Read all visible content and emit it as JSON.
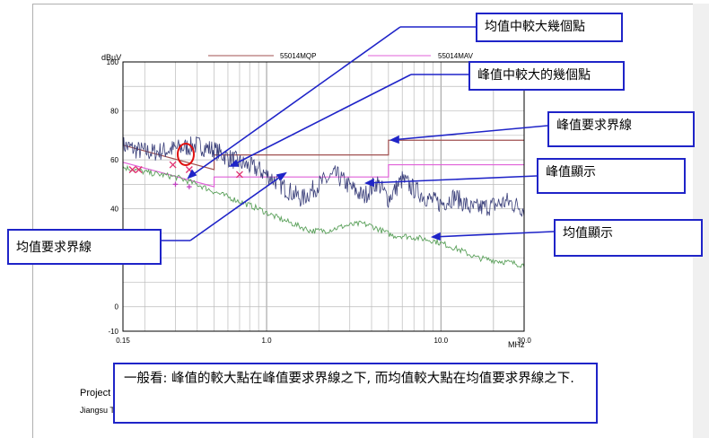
{
  "chart_data": {
    "type": "line",
    "title": "",
    "ylabel": "dBµV",
    "xlabel": "MHz",
    "x_scale": "log",
    "xlim": [
      0.15,
      30.0
    ],
    "ylim": [
      -10,
      100
    ],
    "x_ticks": [
      {
        "value": 0.15,
        "label": "0.15"
      },
      {
        "value": 1.0,
        "label": "1.0"
      },
      {
        "value": 10.0,
        "label": "10.0"
      },
      {
        "value": 30.0,
        "label": "30.0"
      }
    ],
    "y_ticks": [
      {
        "value": 100,
        "label": "100"
      },
      {
        "value": 80,
        "label": "80"
      },
      {
        "value": 60,
        "label": "60"
      },
      {
        "value": 40,
        "label": "40"
      },
      {
        "value": 0,
        "label": "0"
      },
      {
        "value": -10,
        "label": "-10"
      }
    ],
    "grid": true,
    "legend_position": "top",
    "colors": {
      "qp_limit": "#a05050",
      "av_limit": "#e060d8",
      "peak": "#3a3f7a",
      "average": "#5aa05a",
      "peak_marker": "#e03070",
      "av_marker": "#c040c0",
      "annotation_border": "#1f24c8",
      "circle": "#e01010"
    },
    "series": [
      {
        "name": "55014MQP",
        "kind": "qp_limit",
        "x": [
          0.15,
          0.5,
          0.5,
          5.0,
          5.0,
          30.0
        ],
        "y": [
          66,
          56,
          62,
          62,
          68,
          68
        ]
      },
      {
        "name": "55014MAV",
        "kind": "av_limit",
        "x": [
          0.15,
          0.5,
          0.5,
          5.0,
          5.0,
          30.0
        ],
        "y": [
          59,
          49,
          53,
          53,
          58,
          58
        ]
      },
      {
        "name": "",
        "kind": "peak",
        "x": [
          0.15,
          0.18,
          0.22,
          0.27,
          0.33,
          0.4,
          0.5,
          0.6,
          0.75,
          0.9,
          1.1,
          1.3,
          1.6,
          2.0,
          2.5,
          3.0,
          3.6,
          4.3,
          5.0,
          6.0,
          7.0,
          8.5,
          10.0,
          12.0,
          15.0,
          19.0,
          24.0,
          30.0
        ],
        "y": [
          66,
          64,
          63,
          64,
          65,
          66,
          64,
          61,
          58,
          56,
          52,
          48,
          44,
          50,
          54,
          49,
          45,
          51,
          44,
          52,
          48,
          44,
          42,
          45,
          40,
          41,
          43,
          40
        ],
        "jitter": 4
      },
      {
        "name": "",
        "kind": "average",
        "x": [
          0.15,
          0.2,
          0.3,
          0.4,
          0.5,
          0.7,
          0.9,
          1.1,
          1.4,
          1.8,
          2.2,
          2.8,
          3.5,
          4.0,
          4.6,
          5.3,
          6.0,
          7.5,
          9.0,
          11.0,
          13.0,
          16.0,
          20.0,
          25.0,
          30.0
        ],
        "y": [
          57,
          55,
          53,
          50,
          47,
          43,
          40,
          37,
          34,
          31,
          31,
          33,
          34,
          33,
          31,
          29,
          29,
          28,
          27,
          25,
          23,
          20,
          19,
          18,
          17
        ],
        "jitter": 1.2
      },
      {
        "name": "",
        "kind": "peak_marker",
        "x": [
          0.17,
          0.185,
          0.29,
          0.36,
          0.7
        ],
        "y": [
          56,
          56,
          58,
          56,
          54
        ]
      },
      {
        "name": "",
        "kind": "av_marker",
        "x": [
          0.3,
          0.36
        ],
        "y": [
          50,
          49
        ]
      }
    ]
  },
  "annotations": {
    "avg_large_points": "均值中較大幾個點",
    "peak_large_points": "峰值中較大的幾個點",
    "peak_limit_line": "峰值要求界線",
    "peak_display": "峰值顯示",
    "avg_limit_line": "均值要求界線",
    "avg_display": "均值顯示",
    "summary": "一般看: 峰值的較大點在峰值要求界線之下, 而均值較大點在均值要求界線之下."
  },
  "footer": {
    "project_label": "Project N",
    "company_label": "Jiangsu Ti"
  }
}
